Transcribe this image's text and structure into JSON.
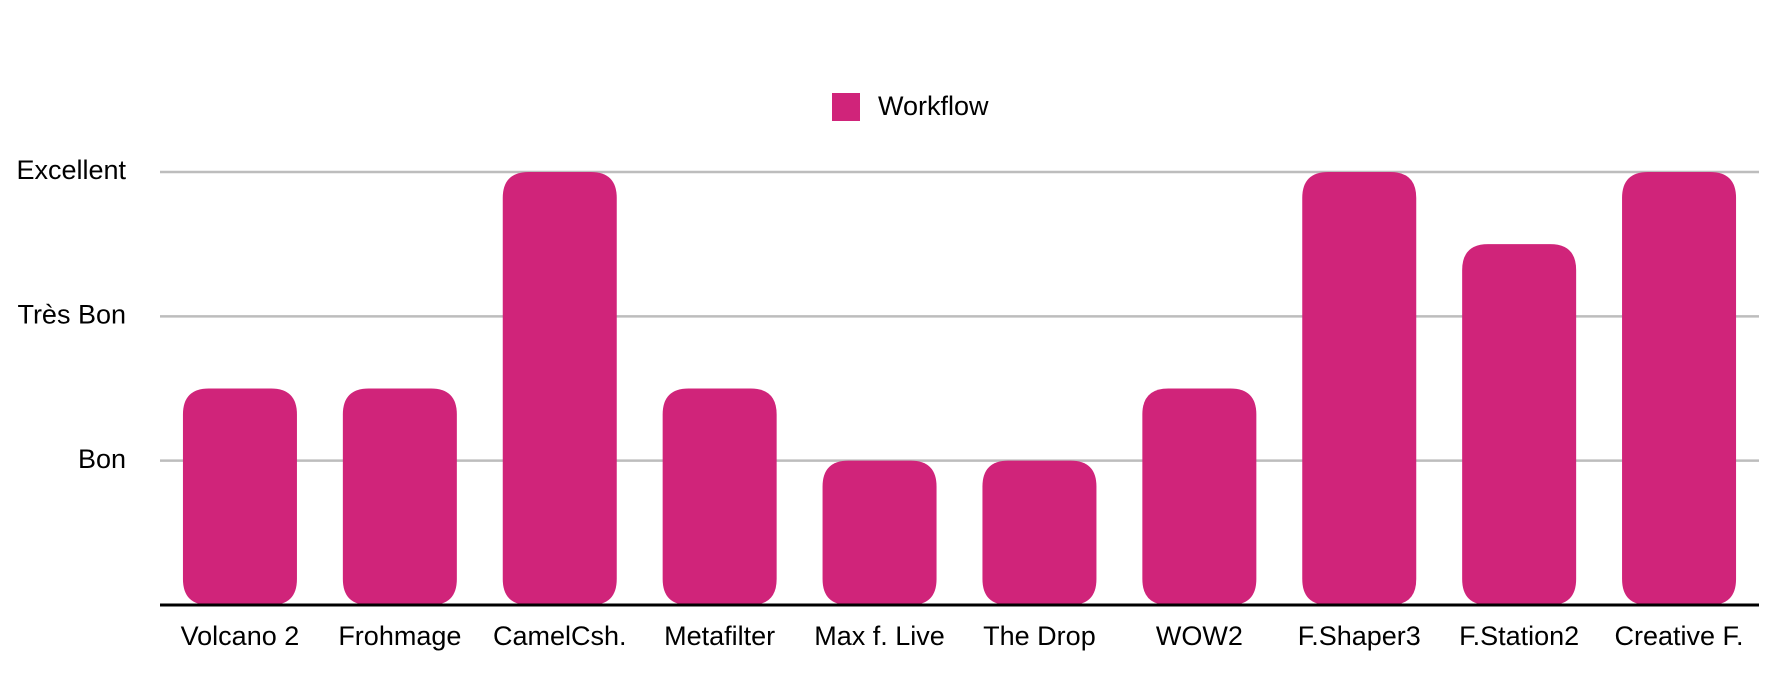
{
  "chart_data": {
    "type": "bar",
    "categories": [
      "Volcano 2",
      "Frohmage",
      "CamelCsh.",
      "Metafilter",
      "Max f. Live",
      "The Drop",
      "WOW2",
      "F.Shaper3",
      "F.Station2",
      "Creative F."
    ],
    "series": [
      {
        "name": "Workflow",
        "color": "#d0247a",
        "values": [
          1.5,
          1.5,
          3,
          1.5,
          1,
          1,
          1.5,
          3,
          2.5,
          3
        ]
      }
    ],
    "ylim": [
      0,
      3
    ],
    "yticks": [
      {
        "value": 1,
        "label": "Bon"
      },
      {
        "value": 2,
        "label": "Très Bon"
      },
      {
        "value": 3,
        "label": "Excellent"
      }
    ],
    "grid": true,
    "legend": "top"
  }
}
